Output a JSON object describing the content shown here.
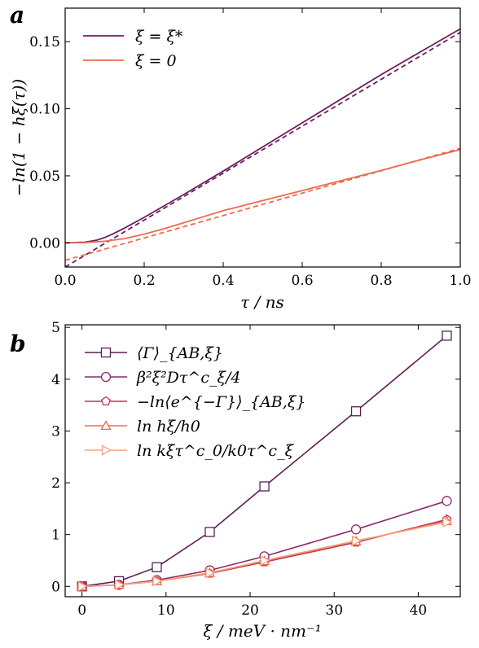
{
  "chart_data": [
    {
      "panel_label": "a",
      "type": "line",
      "xlabel": "τ / ns",
      "ylabel": "−ln(1 − hξ(τ))",
      "xlim": [
        0.0,
        1.0
      ],
      "ylim": [
        -0.018,
        0.175
      ],
      "xticks": [
        "0.0",
        "0.2",
        "0.4",
        "0.6",
        "0.8",
        "1.0"
      ],
      "yticks": [
        "0.00",
        "0.05",
        "0.10",
        "0.15"
      ],
      "legend_position": "top-left",
      "grid": false,
      "series": [
        {
          "name": "ξ = ξ*",
          "color": "#6b1f5e",
          "dash": "solid",
          "x": [
            0.0,
            0.05,
            0.08,
            0.1,
            0.12,
            0.15,
            0.2,
            0.25,
            0.3,
            0.4,
            0.5,
            0.6,
            0.7,
            0.8,
            0.9,
            1.0
          ],
          "y": [
            0.0,
            0.0005,
            0.002,
            0.004,
            0.0065,
            0.011,
            0.019,
            0.0275,
            0.036,
            0.0535,
            0.0715,
            0.0895,
            0.1075,
            0.1255,
            0.1425,
            0.1595
          ]
        },
        {
          "name": "",
          "color": "#6b1f5e",
          "dash": "dashed",
          "x": [
            0.0,
            1.0
          ],
          "y": [
            -0.018,
            0.157
          ]
        },
        {
          "name": "ξ = 0",
          "color": "#ee6a50",
          "dash": "solid",
          "x": [
            0.0,
            0.05,
            0.1,
            0.15,
            0.2,
            0.25,
            0.3,
            0.35,
            0.4,
            0.5,
            0.6,
            0.7,
            0.8,
            0.9,
            1.0
          ],
          "y": [
            0.0,
            0.0002,
            0.0012,
            0.0032,
            0.0065,
            0.0105,
            0.015,
            0.0195,
            0.024,
            0.0315,
            0.039,
            0.0465,
            0.054,
            0.062,
            0.0695
          ]
        },
        {
          "name": "",
          "color": "#ee6a50",
          "dash": "dashed",
          "x": [
            0.0,
            1.0
          ],
          "y": [
            -0.013,
            0.0705
          ]
        }
      ]
    },
    {
      "panel_label": "b",
      "type": "line",
      "xlabel": "ξ / meV · nm⁻¹",
      "ylabel": "",
      "xlim": [
        -2.0,
        45.0
      ],
      "ylim": [
        -0.2,
        5.05
      ],
      "xticks": [
        "0",
        "10",
        "20",
        "30",
        "40"
      ],
      "yticks": [
        "0",
        "1",
        "2",
        "3",
        "4",
        "5"
      ],
      "legend_position": "top-left",
      "grid": false,
      "x": [
        0.0,
        4.4,
        8.9,
        15.2,
        21.7,
        32.6,
        43.4
      ],
      "series": [
        {
          "name": "⟨Γ⟩_{AB,ξ}",
          "color": "#5c1e55",
          "marker": "square",
          "values": [
            0.0,
            0.1,
            0.37,
            1.05,
            1.93,
            3.38,
            4.84
          ]
        },
        {
          "name": "β²ξ²Dτ^c_ξ/4",
          "color": "#8c2a6a",
          "marker": "circle",
          "values": [
            0.0,
            0.03,
            0.12,
            0.31,
            0.58,
            1.1,
            1.65
          ]
        },
        {
          "name": "−ln⟨e^{−Γ}⟩_{AB,ξ}",
          "color": "#c4314f",
          "marker": "pentagon",
          "values": [
            0.0,
            0.03,
            0.1,
            0.25,
            0.47,
            0.85,
            1.29
          ]
        },
        {
          "name": "ln hξ/h0",
          "color": "#f06a4f",
          "marker": "triangle-up",
          "values": [
            0.0,
            0.03,
            0.1,
            0.26,
            0.49,
            0.87,
            1.26
          ]
        },
        {
          "name": "ln kξτ^c_0/k0τ^c_ξ",
          "color": "#f5a37a",
          "marker": "triangle-right",
          "values": [
            0.0,
            0.03,
            0.1,
            0.26,
            0.5,
            0.88,
            1.24
          ]
        }
      ]
    }
  ]
}
